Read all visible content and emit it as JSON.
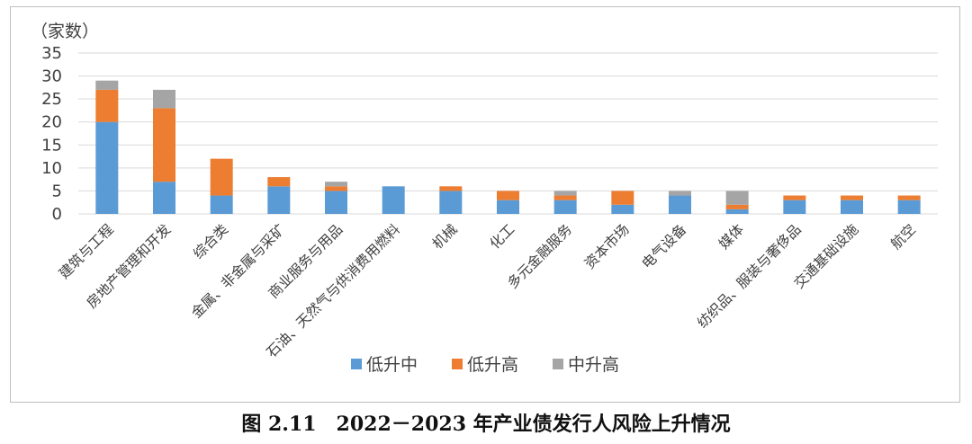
{
  "caption": "图 2.11　2022－2023 年产业债发行人风险上升情况",
  "chart_data": {
    "type": "bar",
    "stacked": true,
    "unit_label": "（家数）",
    "ylim": [
      0,
      35
    ],
    "yticks": [
      0,
      5,
      10,
      15,
      20,
      25,
      30,
      35
    ],
    "grid": true,
    "legend_position": "bottom",
    "categories": [
      "建筑与工程",
      "房地产管理和开发",
      "综合类",
      "金属、非金属与采矿",
      "商业服务与用品",
      "石油、天然气与供消费用燃料",
      "机械",
      "化工",
      "多元金融服务",
      "资本市场",
      "电气设备",
      "媒体",
      "纺织品、服装与奢侈品",
      "交通基础设施",
      "航空"
    ],
    "series": [
      {
        "name": "低升中",
        "color": "#5b9bd5",
        "values": [
          20,
          7,
          4,
          6,
          5,
          6,
          5,
          3,
          3,
          2,
          4,
          1,
          3,
          3,
          3
        ]
      },
      {
        "name": "低升高",
        "color": "#ed7d31",
        "values": [
          7,
          16,
          8,
          2,
          1,
          0,
          1,
          2,
          1,
          3,
          0,
          1,
          1,
          1,
          1
        ]
      },
      {
        "name": "中升高",
        "color": "#a5a5a5",
        "values": [
          2,
          4,
          0,
          0,
          1,
          0,
          0,
          0,
          1,
          0,
          1,
          3,
          0,
          0,
          0
        ]
      }
    ]
  }
}
